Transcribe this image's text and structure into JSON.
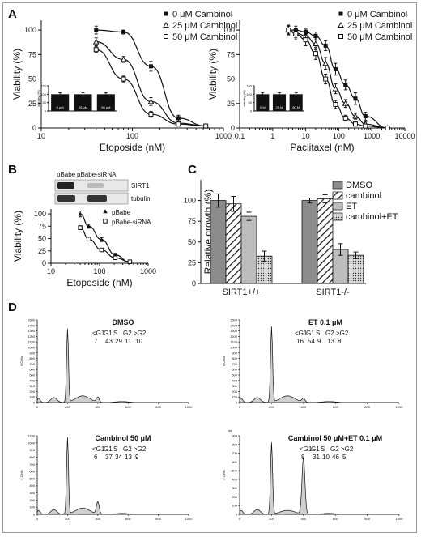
{
  "chart_data": [
    {
      "panel": "A",
      "type": "line",
      "xlabel": "Etoposide (nM)",
      "ylabel": "Viability (%)",
      "xscale": "log",
      "xlim": [
        10,
        1000
      ],
      "ylim": [
        0,
        110
      ],
      "xticks": [
        "10",
        "100",
        "1000"
      ],
      "yticks": [
        "0",
        "25",
        "50",
        "75",
        "100"
      ],
      "legend_position": "top-right",
      "series": [
        {
          "name": "0 μM Cambinol",
          "marker": "filled-square",
          "x": [
            40,
            80,
            160,
            320,
            640
          ],
          "y": [
            100,
            98,
            63,
            10,
            2
          ],
          "err": [
            4,
            2,
            5,
            3,
            1
          ]
        },
        {
          "name": "25 μM Cambinol",
          "marker": "open-triangle",
          "x": [
            40,
            80,
            160,
            320,
            640
          ],
          "y": [
            88,
            70,
            27,
            5,
            2
          ],
          "err": [
            4,
            3,
            4,
            2,
            1
          ]
        },
        {
          "name": "50 μM Cambinol",
          "marker": "open-square",
          "x": [
            40,
            80,
            160,
            320,
            640
          ],
          "y": [
            80,
            50,
            14,
            4,
            2
          ],
          "err": [
            3,
            3,
            3,
            2,
            1
          ]
        }
      ],
      "inset": {
        "type": "bar",
        "ylabel": "viability (%)",
        "yticks": [
          "0",
          "50",
          "100",
          "150"
        ],
        "categories": [
          "0 μM",
          "25 μM",
          "50 μM"
        ],
        "values": [
          100,
          100,
          100
        ]
      }
    },
    {
      "panel": "A",
      "type": "line",
      "xlabel": "Paclitaxel (nM)",
      "ylabel": "Viability (%)",
      "xscale": "log",
      "xlim": [
        0.1,
        10000
      ],
      "ylim": [
        0,
        110
      ],
      "xticks": [
        "0.1",
        "1",
        "10",
        "100",
        "1000",
        "10000"
      ],
      "yticks": [
        "0",
        "25",
        "50",
        "75",
        "100"
      ],
      "legend_position": "top-right",
      "series": [
        {
          "name": "0 μM Cambinol",
          "marker": "filled-square",
          "x": [
            3,
            5,
            10,
            20,
            40,
            80,
            160,
            320,
            640,
            3000
          ],
          "y": [
            100,
            100,
            98,
            94,
            84,
            60,
            44,
            30,
            12,
            0
          ],
          "err": [
            4,
            4,
            3,
            4,
            5,
            6,
            5,
            6,
            4,
            1
          ]
        },
        {
          "name": "25 μM Cambinol",
          "marker": "open-triangle",
          "x": [
            3,
            5,
            10,
            20,
            40,
            80,
            160,
            320,
            640,
            3000
          ],
          "y": [
            100,
            97,
            94,
            86,
            66,
            40,
            25,
            12,
            4,
            0
          ],
          "err": [
            4,
            5,
            5,
            6,
            6,
            5,
            4,
            3,
            2,
            1
          ]
        },
        {
          "name": "50 μM Cambinol",
          "marker": "open-square",
          "x": [
            3,
            5,
            10,
            20,
            40,
            80,
            160,
            320,
            640,
            3000
          ],
          "y": [
            100,
            96,
            90,
            76,
            50,
            24,
            10,
            4,
            2,
            0
          ],
          "err": [
            5,
            6,
            6,
            6,
            5,
            4,
            3,
            2,
            1,
            1
          ]
        }
      ],
      "inset": {
        "type": "bar",
        "ylabel": "viability (%)",
        "yticks": [
          "0",
          "50",
          "100",
          "150"
        ],
        "categories": [
          "0 M",
          "25 M",
          "50 M"
        ],
        "values": [
          100,
          100,
          100
        ]
      }
    },
    {
      "panel": "B",
      "type": "line",
      "xlabel": "Etoposide (nM)",
      "ylabel": "Viability (%)",
      "xscale": "log",
      "xlim": [
        10,
        1000
      ],
      "ylim": [
        0,
        110
      ],
      "xticks": [
        "10",
        "100",
        "1000"
      ],
      "yticks": [
        "0",
        "25",
        "50",
        "75",
        "100"
      ],
      "legend_position": "top-right",
      "series": [
        {
          "name": "pBabe",
          "marker": "filled-triangle",
          "x": [
            40,
            60,
            110,
            210,
            420
          ],
          "y": [
            100,
            75,
            48,
            17,
            2
          ],
          "err": [
            6,
            4,
            4,
            3,
            1
          ]
        },
        {
          "name": "pBabe-siRNA",
          "marker": "open-square",
          "x": [
            40,
            60,
            110,
            210,
            420
          ],
          "y": [
            72,
            49,
            27,
            11,
            3
          ],
          "err": [
            4,
            3,
            3,
            2,
            1
          ]
        }
      ],
      "blot": {
        "lanes": [
          "pBabe",
          "pBabe-siRNA"
        ],
        "rows": [
          "SIRT1",
          "tubulin"
        ]
      }
    },
    {
      "panel": "C",
      "type": "bar",
      "ylabel": "Relative growth (%)",
      "ylim": [
        0,
        125
      ],
      "yticks": [
        "0",
        "25",
        "50",
        "75",
        "100"
      ],
      "categories": [
        "SIRT1+/+",
        "SIRT1-/-"
      ],
      "legend_position": "top-right",
      "series": [
        {
          "name": "DMSO",
          "values": [
            100,
            100
          ],
          "err": [
            8,
            3
          ]
        },
        {
          "name": "cambinol",
          "values": [
            96,
            102
          ],
          "err": [
            9,
            5
          ]
        },
        {
          "name": "ET",
          "values": [
            81,
            41
          ],
          "err": [
            5,
            7
          ]
        },
        {
          "name": "cambinol+ET",
          "values": [
            33,
            34
          ],
          "err": [
            6,
            4
          ]
        }
      ]
    },
    {
      "panel": "D",
      "type": "area",
      "ylabel": "# Cells",
      "xticks": [
        "0",
        "200",
        "400",
        "600",
        "800",
        "1000"
      ],
      "subplots": [
        {
          "title": "DMSO",
          "yticks": [
            "0",
            "100",
            "200",
            "300",
            "400",
            "500",
            "600",
            "700",
            "800",
            "900",
            "1000",
            "1100",
            "1200",
            "1300",
            "1400",
            "1500"
          ],
          "ylim": [
            0,
            1500
          ],
          "peaks": [
            {
              "x": 200,
              "y": 1330
            },
            {
              "x": 400,
              "y": 90
            }
          ],
          "table": {
            "headers": [
              "<G1",
              "G1",
              "S",
              "G2",
              ">G2"
            ],
            "values": [
              "7",
              "43",
              "29",
              "11",
              "10"
            ]
          }
        },
        {
          "title": "ET 0.1 μM",
          "yticks": [
            "0",
            "100",
            "200",
            "300",
            "400",
            "500",
            "600",
            "700",
            "800",
            "900",
            "1000",
            "1100",
            "1200",
            "1300",
            "1400",
            "1500"
          ],
          "ylim": [
            0,
            1500
          ],
          "peaks": [
            {
              "x": 200,
              "y": 1370
            },
            {
              "x": 400,
              "y": 70
            }
          ],
          "table": {
            "headers": [
              "<G1",
              "G1",
              "S",
              "G2",
              ">G2"
            ],
            "values": [
              "16",
              "54",
              "9",
              "13",
              "8"
            ]
          }
        },
        {
          "title": "Cambinol 50 μM",
          "yticks": [
            "0",
            "100",
            "200",
            "300",
            "400",
            "500",
            "600",
            "700",
            "800",
            "900",
            "1000",
            "1100"
          ],
          "ylim": [
            0,
            1100
          ],
          "peaks": [
            {
              "x": 200,
              "y": 1070
            },
            {
              "x": 400,
              "y": 170
            }
          ],
          "table": {
            "headers": [
              "<G1",
              "G1",
              "S",
              "G2",
              ">G2"
            ],
            "values": [
              "6",
              "37",
              "34",
              "13",
              "9"
            ]
          }
        },
        {
          "title": "Cambinol 50 μM+ET 0.1 μM",
          "ylabel_extra": "sis",
          "yticks": [
            "0",
            "100",
            "200",
            "300",
            "400",
            "500",
            "600",
            "700",
            "800",
            "900"
          ],
          "ylim": [
            0,
            900
          ],
          "peaks": [
            {
              "x": 200,
              "y": 820
            },
            {
              "x": 400,
              "y": 650
            }
          ],
          "table": {
            "headers": [
              "<G1",
              "G1",
              "S",
              "G2",
              ">G2"
            ],
            "values": [
              "8",
              "31",
              "10",
              "46",
              "5"
            ]
          }
        }
      ]
    }
  ],
  "labels": {
    "panel_a": "A",
    "panel_b": "B",
    "panel_c": "C",
    "panel_d": "D"
  }
}
